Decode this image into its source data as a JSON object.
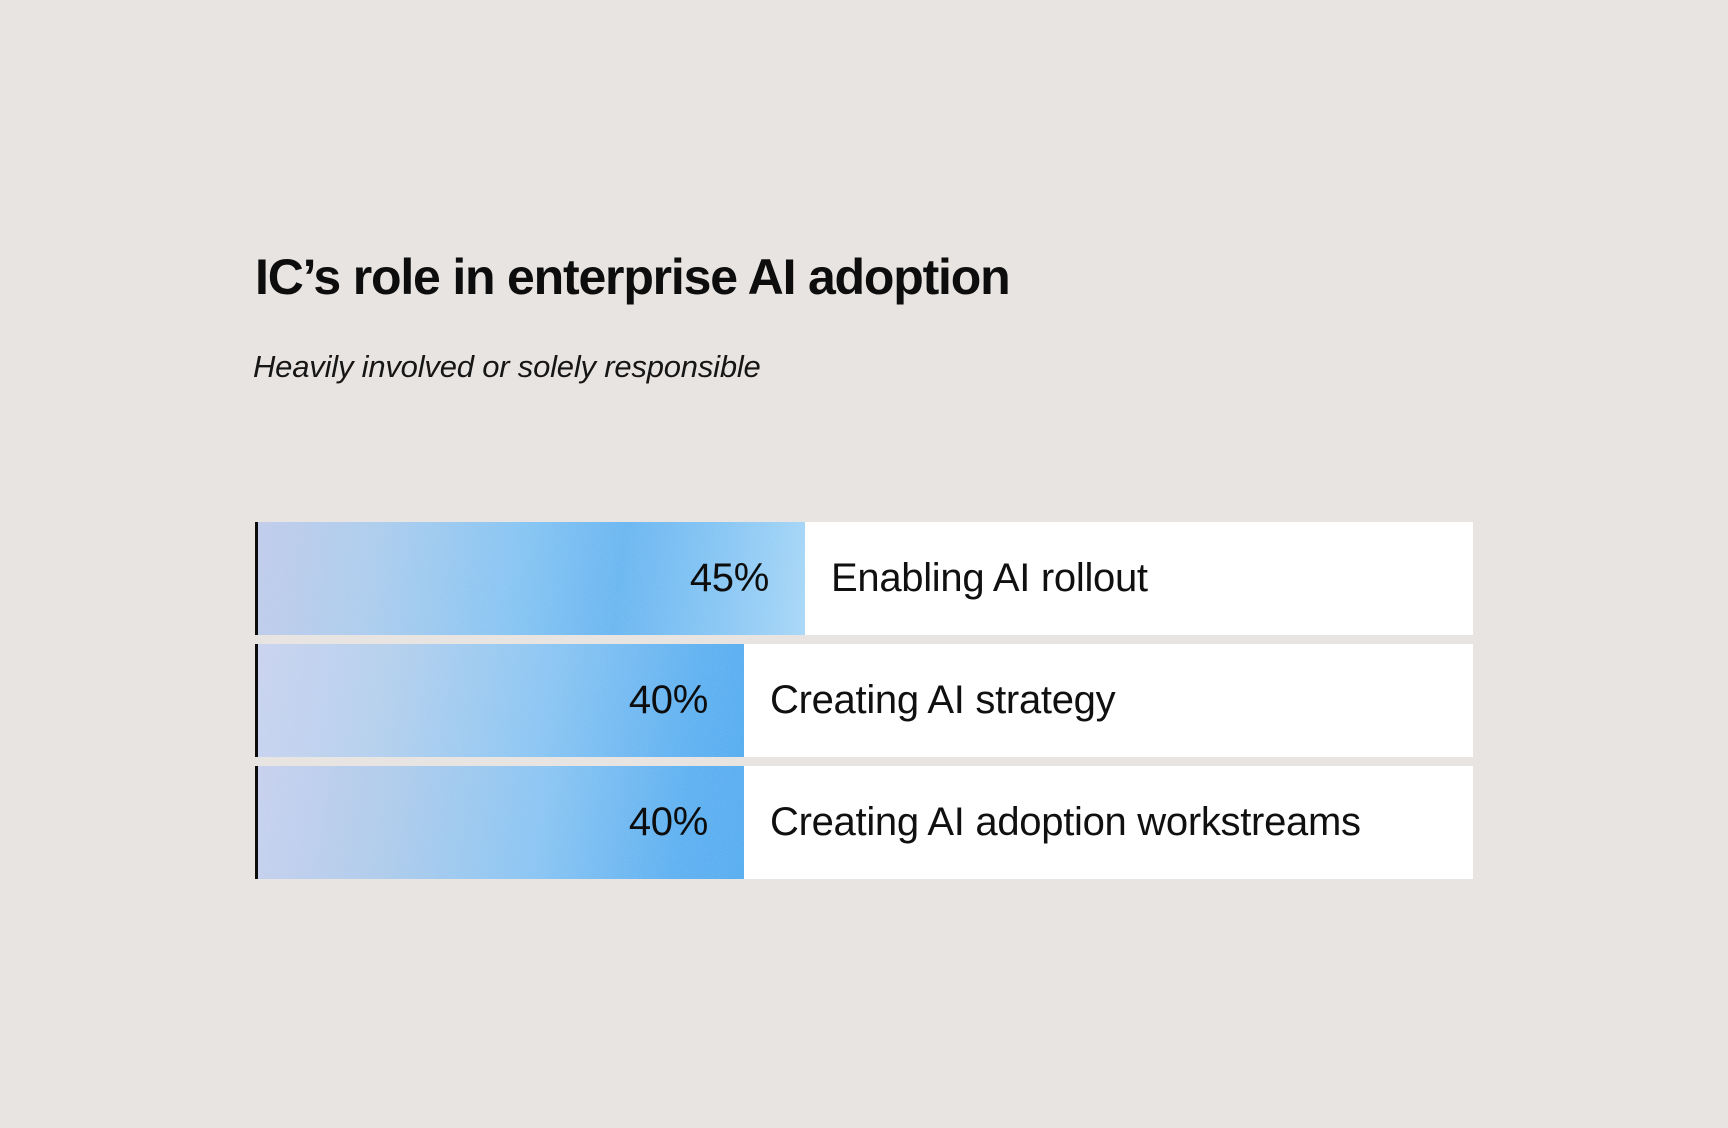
{
  "page": {
    "background_color": "#e8e4e1",
    "row_background_color": "#ffffff",
    "axis_line_color": "#0c0c0c",
    "text_color": "#0d0d0d"
  },
  "header": {
    "title": "IC’s role in enterprise AI adoption",
    "subtitle": "Heavily involved or solely responsible"
  },
  "chart_data": {
    "type": "bar",
    "orientation": "horizontal",
    "title": "IC’s role in enterprise AI adoption",
    "subtitle": "Heavily involved or solely responsible",
    "categories": [
      "Enabling AI rollout",
      "Creating AI strategy",
      "Creating AI adoption workstreams"
    ],
    "values": [
      45,
      40,
      40
    ],
    "value_labels": [
      "45%",
      "40%",
      "40%"
    ],
    "xlim": [
      0,
      100
    ],
    "grid": false,
    "legend": false,
    "value_label_position": "inside-end",
    "category_label_position": "right-of-bar",
    "bar_gradient": {
      "start": "#bdc9ea",
      "middle": "#6eb8f1",
      "end_row_1": "#a2d4f7",
      "end_rows_2_3": "#4aa7ee"
    }
  }
}
